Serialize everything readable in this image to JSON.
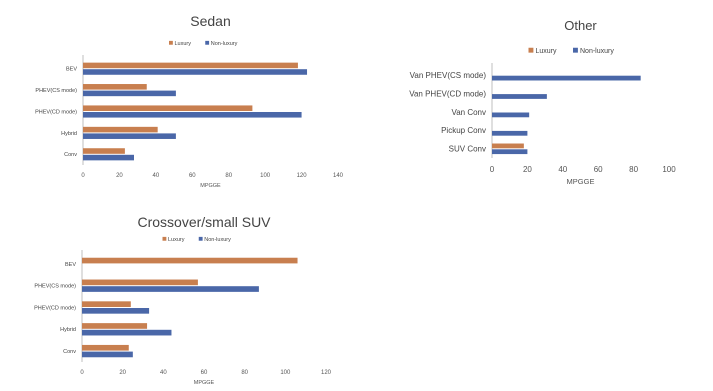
{
  "colors": {
    "luxury": "#c87f4f",
    "non_luxury": "#4a67a8"
  },
  "chart_data": [
    {
      "id": "sedan",
      "type": "bar",
      "orientation": "horizontal",
      "title": "Sedan",
      "xlabel": "MPGGE",
      "categories": [
        "BEV",
        "PHEV(CS mode)",
        "PHEV(CD mode)",
        "Hybrid",
        "Conv"
      ],
      "series": [
        {
          "name": "Luxury",
          "values": [
            118,
            35,
            93,
            41,
            23
          ]
        },
        {
          "name": "Non-luxury",
          "values": [
            123,
            51,
            120,
            51,
            28
          ]
        }
      ],
      "xlim": [
        0,
        140
      ],
      "xticks": [
        "0",
        "20",
        "40",
        "60",
        "80",
        "100",
        "120",
        "140"
      ],
      "legend": "top"
    },
    {
      "id": "other",
      "type": "bar",
      "orientation": "horizontal",
      "title": "Other",
      "xlabel": "MPGGE",
      "categories": [
        "Van PHEV(CS mode)",
        "Van PHEV(CD mode)",
        "Van Conv",
        "Pickup Conv",
        "SUV Conv"
      ],
      "series": [
        {
          "name": "Luxury",
          "values": [
            0,
            0,
            0,
            0,
            18
          ]
        },
        {
          "name": "Non-luxury",
          "values": [
            84,
            31,
            21,
            20,
            20
          ]
        }
      ],
      "xlim": [
        0,
        100
      ],
      "xticks": [
        "0",
        "20",
        "40",
        "60",
        "80",
        "100"
      ],
      "legend": "top"
    },
    {
      "id": "crossover",
      "type": "bar",
      "orientation": "horizontal",
      "title": "Crossover/small SUV",
      "xlabel": "MPGGE",
      "categories": [
        "BEV",
        "PHEV(CS mode)",
        "PHEV(CD mode)",
        "Hybrid",
        "Conv"
      ],
      "series": [
        {
          "name": "Luxury",
          "values": [
            106,
            57,
            24,
            32,
            23
          ]
        },
        {
          "name": "Non-luxury",
          "values": [
            0,
            87,
            33,
            44,
            25
          ]
        }
      ],
      "xlim": [
        0,
        120
      ],
      "xticks": [
        "0",
        "20",
        "40",
        "60",
        "80",
        "100",
        "120"
      ],
      "legend": "top"
    }
  ]
}
